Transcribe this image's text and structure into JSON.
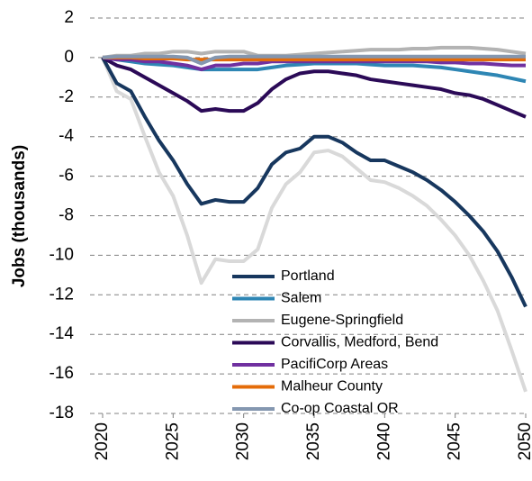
{
  "chart_data": {
    "type": "line",
    "y_label": "Jobs (thousands)",
    "x": [
      2020,
      2021,
      2022,
      2023,
      2024,
      2025,
      2026,
      2027,
      2028,
      2029,
      2030,
      2031,
      2032,
      2033,
      2034,
      2035,
      2036,
      2037,
      2038,
      2039,
      2040,
      2041,
      2042,
      2043,
      2044,
      2045,
      2046,
      2047,
      2048,
      2049,
      2050
    ],
    "xlim": [
      2020,
      2050
    ],
    "xticks": [
      2020,
      2025,
      2030,
      2035,
      2040,
      2045,
      2050
    ],
    "ylim": [
      -18,
      2
    ],
    "yticks": [
      -18,
      -16,
      -14,
      -12,
      -10,
      -8,
      -6,
      -4,
      -2,
      0,
      2
    ],
    "grid": true,
    "series": [
      {
        "color": "#d9d9d9",
        "values": [
          0,
          -1.7,
          -2.1,
          -4.0,
          -5.8,
          -7.0,
          -9.0,
          -11.4,
          -10.2,
          -10.3,
          -10.3,
          -9.7,
          -7.6,
          -6.4,
          -5.8,
          -4.8,
          -4.7,
          -5.0,
          -5.6,
          -6.2,
          -6.3,
          -6.6,
          -7.0,
          -7.5,
          -8.2,
          -9.0,
          -10.0,
          -11.3,
          -12.8,
          -14.8,
          -16.9
        ]
      },
      {
        "name": "Portland",
        "color": "#17375e",
        "values": [
          0,
          -1.3,
          -1.7,
          -3.0,
          -4.2,
          -5.2,
          -6.4,
          -7.4,
          -7.2,
          -7.3,
          -7.3,
          -6.6,
          -5.4,
          -4.8,
          -4.6,
          -4.0,
          -4.0,
          -4.3,
          -4.8,
          -5.2,
          -5.2,
          -5.5,
          -5.8,
          -6.2,
          -6.7,
          -7.3,
          -8.0,
          -8.8,
          -9.8,
          -11.1,
          -12.6
        ]
      },
      {
        "name": "Salem",
        "color": "#2e86b4",
        "values": [
          0,
          -0.1,
          -0.2,
          -0.3,
          -0.35,
          -0.4,
          -0.5,
          -0.6,
          -0.6,
          -0.6,
          -0.6,
          -0.6,
          -0.5,
          -0.4,
          -0.35,
          -0.3,
          -0.3,
          -0.3,
          -0.3,
          -0.35,
          -0.4,
          -0.4,
          -0.4,
          -0.45,
          -0.5,
          -0.6,
          -0.7,
          -0.8,
          -0.9,
          -1.05,
          -1.2
        ]
      },
      {
        "name": "Eugene-Springfield",
        "color": "#b3b3b3",
        "values": [
          0,
          0.1,
          0.1,
          0.2,
          0.2,
          0.3,
          0.3,
          0.2,
          0.3,
          0.3,
          0.3,
          0.1,
          0.1,
          0.1,
          0.15,
          0.2,
          0.25,
          0.3,
          0.35,
          0.4,
          0.4,
          0.4,
          0.45,
          0.45,
          0.5,
          0.5,
          0.5,
          0.45,
          0.4,
          0.3,
          0.2
        ]
      },
      {
        "name": "Corvallis, Medford, Bend",
        "color": "#2b0a57",
        "values": [
          0,
          -0.4,
          -0.6,
          -1.0,
          -1.4,
          -1.8,
          -2.2,
          -2.7,
          -2.6,
          -2.7,
          -2.7,
          -2.3,
          -1.6,
          -1.1,
          -0.8,
          -0.7,
          -0.7,
          -0.8,
          -0.9,
          -1.1,
          -1.2,
          -1.3,
          -1.4,
          -1.5,
          -1.6,
          -1.8,
          -1.9,
          -2.1,
          -2.4,
          -2.7,
          -3.0
        ]
      },
      {
        "name": "PacifiCorp Areas",
        "color": "#7030a0",
        "values": [
          0,
          -0.1,
          -0.1,
          -0.2,
          -0.2,
          -0.3,
          -0.4,
          -0.6,
          -0.4,
          -0.4,
          -0.3,
          -0.3,
          -0.2,
          -0.2,
          -0.2,
          -0.2,
          -0.2,
          -0.2,
          -0.2,
          -0.2,
          -0.2,
          -0.2,
          -0.2,
          -0.2,
          -0.25,
          -0.25,
          -0.3,
          -0.3,
          -0.35,
          -0.4,
          -0.4
        ]
      },
      {
        "name": "Malheur County",
        "color": "#e46c0a",
        "values": [
          0,
          0,
          0,
          -0.05,
          -0.05,
          -0.05,
          -0.1,
          -0.1,
          -0.1,
          -0.1,
          -0.1,
          -0.1,
          -0.1,
          -0.1,
          -0.1,
          -0.1,
          -0.1,
          -0.1,
          -0.1,
          -0.1,
          -0.1,
          -0.1,
          -0.1,
          -0.1,
          -0.1,
          -0.1,
          -0.1,
          -0.1,
          -0.1,
          -0.1,
          -0.1
        ]
      },
      {
        "name": "Co-op Coastal OR",
        "color": "#8497b0",
        "values": [
          0,
          0.05,
          0.05,
          0.05,
          0.05,
          0.05,
          0,
          -0.3,
          0,
          0.05,
          0.05,
          0.05,
          0.05,
          0.05,
          0.05,
          0.05,
          0.05,
          0.05,
          0.05,
          0.05,
          0.05,
          0.05,
          0.05,
          0.05,
          0.05,
          0.05,
          0.05,
          0.05,
          0.05,
          0.05,
          0.05
        ]
      }
    ]
  }
}
